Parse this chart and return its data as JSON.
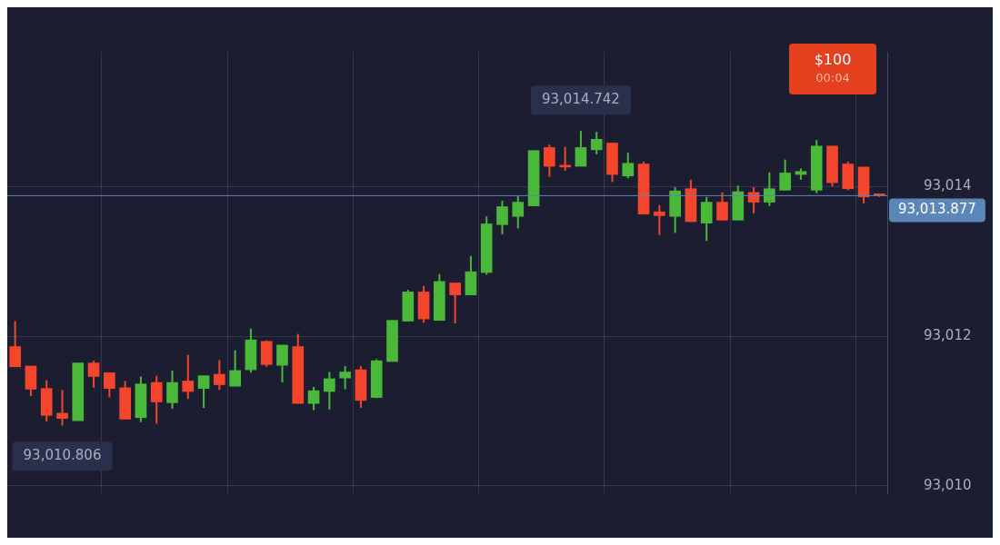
{
  "chart_data": {
    "type": "candlestick",
    "categories": [
      null,
      null,
      null,
      null,
      null,
      null,
      null,
      null,
      null,
      null,
      null,
      null,
      null,
      null,
      null,
      null,
      null,
      null,
      null,
      null,
      null,
      null,
      null,
      null,
      null,
      null,
      null,
      null,
      null,
      null,
      null,
      null,
      null,
      null,
      null,
      null,
      null,
      null,
      null,
      null,
      null,
      null,
      null,
      null,
      null,
      null,
      null,
      null,
      null,
      null,
      null,
      null,
      null,
      null,
      null,
      null
    ],
    "ohlc": [
      [
        93011.86,
        93012.2,
        93011.59,
        93011.59
      ],
      [
        93011.6,
        93011.6,
        93011.2,
        93011.29
      ],
      [
        93011.3,
        93011.41,
        93010.86,
        93010.94
      ],
      [
        93010.97,
        93011.28,
        93010.806,
        93010.9
      ],
      [
        93010.87,
        93011.64,
        93010.87,
        93011.64
      ],
      [
        93011.64,
        93011.67,
        93011.31,
        93011.46
      ],
      [
        93011.51,
        93011.51,
        93011.18,
        93011.3
      ],
      [
        93011.31,
        93011.4,
        93010.89,
        93010.89
      ],
      [
        93010.91,
        93011.46,
        93010.85,
        93011.36
      ],
      [
        93011.38,
        93011.47,
        93010.83,
        93011.12
      ],
      [
        93011.11,
        93011.54,
        93011.03,
        93011.38
      ],
      [
        93011.4,
        93011.75,
        93011.16,
        93011.26
      ],
      [
        93011.3,
        93011.47,
        93011.04,
        93011.47
      ],
      [
        93011.49,
        93011.68,
        93011.28,
        93011.35
      ],
      [
        93011.33,
        93011.81,
        93011.33,
        93011.54
      ],
      [
        93011.55,
        93012.1,
        93011.51,
        93011.95
      ],
      [
        93011.93,
        93011.94,
        93011.59,
        93011.62
      ],
      [
        93011.61,
        93011.88,
        93011.38,
        93011.88
      ],
      [
        93011.86,
        93012.03,
        93011.1,
        93011.1
      ],
      [
        93011.1,
        93011.32,
        93011.01,
        93011.27
      ],
      [
        93011.26,
        93011.52,
        93011.02,
        93011.43
      ],
      [
        93011.44,
        93011.6,
        93011.29,
        93011.52
      ],
      [
        93011.55,
        93011.6,
        93011.04,
        93011.14
      ],
      [
        93011.18,
        93011.69,
        93011.17,
        93011.67
      ],
      [
        93011.66,
        93012.21,
        93011.66,
        93012.21
      ],
      [
        93012.2,
        93012.62,
        93012.2,
        93012.59
      ],
      [
        93012.59,
        93012.67,
        93012.18,
        93012.23
      ],
      [
        93012.21,
        93012.83,
        93012.21,
        93012.73
      ],
      [
        93012.71,
        93012.71,
        93012.17,
        93012.55
      ],
      [
        93012.55,
        93013.07,
        93012.55,
        93012.86
      ],
      [
        93012.85,
        93013.6,
        93012.82,
        93013.5
      ],
      [
        93013.49,
        93013.81,
        93013.36,
        93013.73
      ],
      [
        93013.6,
        93013.87,
        93013.44,
        93013.79
      ],
      [
        93013.74,
        93014.48,
        93013.74,
        93014.48
      ],
      [
        93014.52,
        93014.56,
        93014.13,
        93014.27
      ],
      [
        93014.28,
        93014.53,
        93014.21,
        93014.26
      ],
      [
        93014.27,
        93014.742,
        93014.27,
        93014.52
      ],
      [
        93014.49,
        93014.73,
        93014.43,
        93014.63
      ],
      [
        93014.58,
        93014.58,
        93014.06,
        93014.16
      ],
      [
        93014.14,
        93014.45,
        93014.11,
        93014.31
      ],
      [
        93014.3,
        93014.33,
        93013.63,
        93013.63
      ],
      [
        93013.66,
        93013.75,
        93013.35,
        93013.61
      ],
      [
        93013.6,
        93013.99,
        93013.38,
        93013.94
      ],
      [
        93013.97,
        93014.09,
        93013.53,
        93013.53
      ],
      [
        93013.51,
        93013.86,
        93013.27,
        93013.79
      ],
      [
        93013.79,
        93013.92,
        93013.55,
        93013.55
      ],
      [
        93013.55,
        93014.01,
        93013.55,
        93013.93
      ],
      [
        93013.92,
        93013.99,
        93013.64,
        93013.79
      ],
      [
        93013.79,
        93014.19,
        93013.74,
        93013.97
      ],
      [
        93013.95,
        93014.36,
        93013.95,
        93014.18
      ],
      [
        93014.16,
        93014.24,
        93014.09,
        93014.2
      ],
      [
        93013.95,
        93014.62,
        93013.91,
        93014.54
      ],
      [
        93014.54,
        93014.54,
        93014.0,
        93014.05
      ],
      [
        93014.3,
        93014.33,
        93013.95,
        93013.97
      ],
      [
        93014.26,
        93014.26,
        93013.77,
        93013.86
      ],
      [
        93013.89,
        93013.89,
        93013.86,
        93013.877
      ]
    ],
    "colors": [
      "#f5452a",
      "#f5452a",
      "#f5452a",
      "#f5452a",
      "#4cb83a",
      "#f5452a",
      "#f5452a",
      "#f5452a",
      "#4cb83a",
      "#f5452a",
      "#4cb83a",
      "#f5452a",
      "#4cb83a",
      "#f5452a",
      "#4cb83a",
      "#4cb83a",
      "#f5452a",
      "#4cb83a",
      "#f5452a",
      "#4cb83a",
      "#4cb83a",
      "#4cb83a",
      "#f5452a",
      "#4cb83a",
      "#4cb83a",
      "#4cb83a",
      "#f5452a",
      "#4cb83a",
      "#f5452a",
      "#4cb83a",
      "#4cb83a",
      "#4cb83a",
      "#4cb83a",
      "#4cb83a",
      "#f5452a",
      "#f5452a",
      "#4cb83a",
      "#4cb83a",
      "#f5452a",
      "#4cb83a",
      "#f5452a",
      "#f5452a",
      "#4cb83a",
      "#f5452a",
      "#4cb83a",
      "#f5452a",
      "#4cb83a",
      "#f5452a",
      "#4cb83a",
      "#4cb83a",
      "#4cb83a",
      "#4cb83a",
      "#f5452a",
      "#f5452a",
      "#f5452a",
      "#f5452a"
    ],
    "ylim": [
      93009.9,
      93015.8
    ],
    "yticks": [
      {
        "value": 93010,
        "label": "93,010"
      },
      {
        "value": 93012,
        "label": "93,012"
      },
      {
        "value": 93014,
        "label": "93,014"
      }
    ],
    "tick_labels": "y",
    "grid": true,
    "ref_lines": [
      {
        "axis": "y",
        "value": 93013.877,
        "label": "93,013.877",
        "color": "#5b86b8"
      }
    ],
    "annotations": [
      "93,014.742",
      "93,010.806",
      "$100",
      "00:04"
    ]
  }
}
